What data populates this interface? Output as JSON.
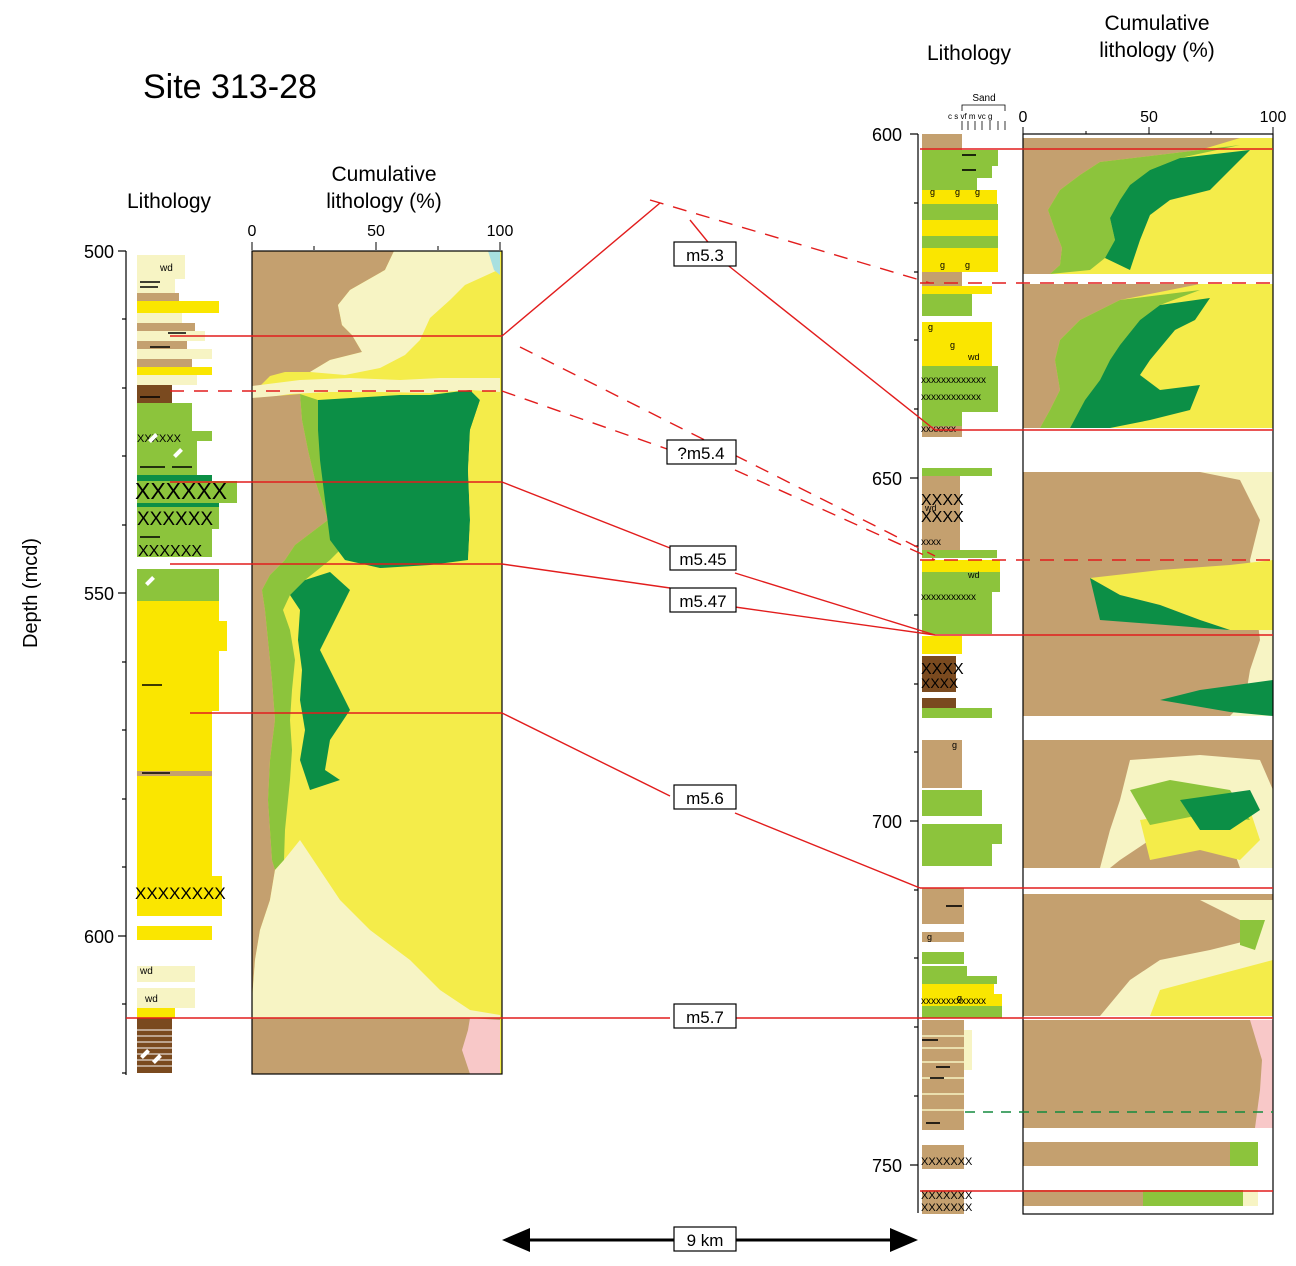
{
  "colors": {
    "clay": "#c4a06f",
    "silt": "#f7f4c4",
    "sand": "#f4ec4a",
    "glauconite_light": "#8cc43c",
    "glauconite_dark": "#0c8f46",
    "lignite": "#7a4a1f",
    "pink": "#f8c8c8",
    "cyan": "#a8e0e0",
    "bright_yellow": "#fae600",
    "red": "#e21d1d",
    "green_dash": "#138a3e"
  },
  "left_column": {
    "site_title": "Site 313-28",
    "lithology_label": "Lithology",
    "cumulative_label_1": "Cumulative",
    "cumulative_label_2": "lithology (%)",
    "depth_label": "Depth (mcd)",
    "depth_ticks": [
      "500",
      "550",
      "600"
    ],
    "pct_ticks": [
      "0",
      "50",
      "100"
    ]
  },
  "right_column": {
    "lithology_label": "Lithology",
    "cumulative_label_1": "Cumulative",
    "cumulative_label_2": "lithology (%)",
    "sand_label": "Sand",
    "grain_sizes": "c s vf  m  vc g",
    "depth_ticks": [
      "600",
      "650",
      "700",
      "750"
    ],
    "pct_ticks": [
      "0",
      "50",
      "100"
    ]
  },
  "sequence_boundaries": [
    {
      "label": "m5.3",
      "left_depth": 512,
      "right_depth": 641
    },
    {
      "label": "?m5.4",
      "left_depth": 520,
      "right_depth": 661
    },
    {
      "label": "m5.45",
      "left_depth": 533,
      "right_depth": 661
    },
    {
      "label": "m5.47",
      "left_depth": 545,
      "right_depth": 661
    },
    {
      "label": "m5.6",
      "left_depth": 568,
      "right_depth": 715
    },
    {
      "label": "m5.7",
      "left_depth": 612,
      "right_depth": 730
    }
  ],
  "scale_bar": {
    "label": "9 km"
  },
  "lith_markers": {
    "wd": "wd",
    "g": "g",
    "x": "X",
    "xs": "x"
  }
}
